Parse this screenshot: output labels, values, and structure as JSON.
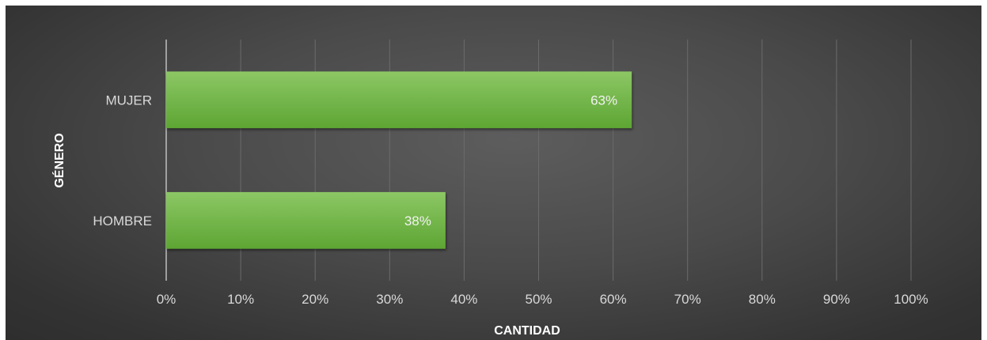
{
  "chart_data": {
    "type": "bar",
    "orientation": "horizontal",
    "categories": [
      "MUJER",
      "HOMBRE"
    ],
    "values": [
      62.5,
      37.5
    ],
    "data_labels": [
      "63%",
      "38%"
    ],
    "xlabel": "CANTIDAD",
    "ylabel": "GÉNERO",
    "xlim": [
      0,
      100
    ],
    "x_ticks": [
      "0%",
      "10%",
      "20%",
      "30%",
      "40%",
      "50%",
      "60%",
      "70%",
      "80%",
      "90%",
      "100%"
    ],
    "grid": true,
    "bar_color": "#6db33f",
    "background": "#4a4a4a"
  }
}
